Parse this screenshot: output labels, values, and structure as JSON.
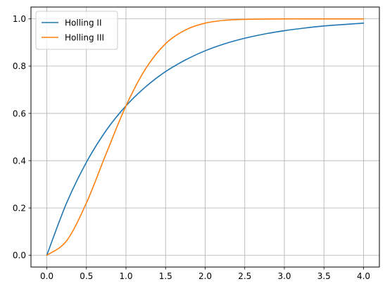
{
  "chart_data": {
    "type": "line",
    "title": "",
    "xlabel": "",
    "ylabel": "",
    "xlim": [
      -0.2,
      4.2
    ],
    "ylim": [
      -0.05,
      1.05
    ],
    "xticks": [
      0.0,
      0.5,
      1.0,
      1.5,
      2.0,
      2.5,
      3.0,
      3.5,
      4.0
    ],
    "xtick_labels": [
      "0.0",
      "0.5",
      "1.0",
      "1.5",
      "2.0",
      "2.5",
      "3.0",
      "3.5",
      "4.0"
    ],
    "yticks": [
      0.0,
      0.2,
      0.4,
      0.6,
      0.8,
      1.0
    ],
    "ytick_labels": [
      "0.0",
      "0.2",
      "0.4",
      "0.6",
      "0.8",
      "1.0"
    ],
    "grid": true,
    "legend_position": "upper-left",
    "series": [
      {
        "name": "Holling II",
        "color": "#1f77b4",
        "x": [
          0.0,
          0.25,
          0.5,
          0.75,
          1.0,
          1.25,
          1.5,
          1.75,
          2.0,
          2.25,
          2.5,
          2.75,
          3.0,
          3.25,
          3.5,
          3.75,
          4.0
        ],
        "y": [
          0.0,
          0.221,
          0.393,
          0.528,
          0.632,
          0.713,
          0.777,
          0.826,
          0.865,
          0.895,
          0.918,
          0.936,
          0.95,
          0.961,
          0.97,
          0.976,
          0.982
        ]
      },
      {
        "name": "Holling III",
        "color": "#ff7f0e",
        "x": [
          0.0,
          0.25,
          0.5,
          0.75,
          1.0,
          1.25,
          1.5,
          1.75,
          2.0,
          2.25,
          2.5,
          2.75,
          3.0,
          3.25,
          3.5,
          3.75,
          4.0
        ],
        "y": [
          0.0,
          0.061,
          0.221,
          0.43,
          0.632,
          0.79,
          0.895,
          0.953,
          0.982,
          0.994,
          0.998,
          0.999,
          1.0,
          1.0,
          1.0,
          1.0,
          1.0
        ]
      }
    ]
  }
}
